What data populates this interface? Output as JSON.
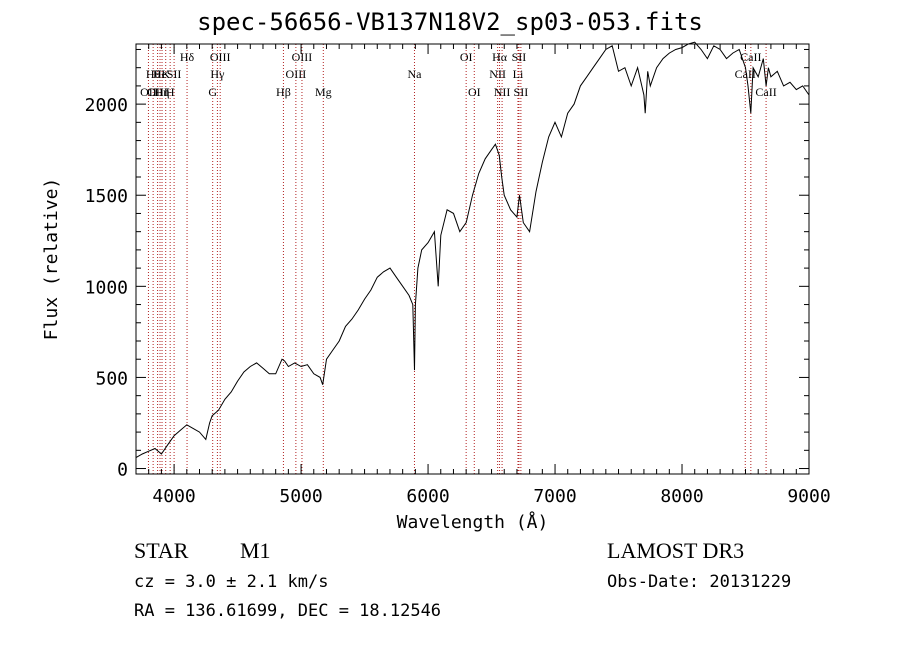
{
  "title": "spec-56656-VB137N18V2_sp03-053.fits",
  "info": {
    "object_class": "STAR",
    "subclass": "M1",
    "survey": "LAMOST DR3",
    "cz": "cz = 3.0 ± 2.1 km/s",
    "obs_date": "Obs-Date: 20131229",
    "coords": "RA = 136.61699, DEC =  18.12546"
  },
  "chart_data": {
    "type": "line",
    "title": "spec-56656-VB137N18V2_sp03-053.fits",
    "xlabel": "Wavelength (Å)",
    "ylabel": "Flux (relative)",
    "xlim": [
      3700,
      9000
    ],
    "ylim": [
      -30,
      2330
    ],
    "x_ticks": [
      4000,
      5000,
      6000,
      7000,
      8000,
      9000
    ],
    "x_tick_labels": [
      "4000",
      "5000",
      "6000",
      "7000",
      "8000",
      "9000"
    ],
    "y_ticks": [
      0,
      500,
      1000,
      1500,
      2000
    ],
    "y_tick_labels": [
      "0",
      "500",
      "1000",
      "1500",
      "2000"
    ],
    "series": [
      {
        "name": "flux",
        "x": [
          3700,
          3750,
          3800,
          3850,
          3900,
          3950,
          4000,
          4050,
          4100,
          4150,
          4200,
          4250,
          4280,
          4300,
          4350,
          4400,
          4450,
          4500,
          4550,
          4600,
          4650,
          4700,
          4750,
          4800,
          4850,
          4870,
          4900,
          4950,
          5000,
          5050,
          5100,
          5150,
          5170,
          5200,
          5250,
          5300,
          5350,
          5400,
          5450,
          5500,
          5550,
          5600,
          5650,
          5700,
          5750,
          5800,
          5850,
          5880,
          5893,
          5900,
          5920,
          5950,
          6000,
          6050,
          6080,
          6100,
          6150,
          6200,
          6250,
          6300,
          6350,
          6400,
          6450,
          6500,
          6530,
          6560,
          6580,
          6600,
          6650,
          6700,
          6720,
          6750,
          6800,
          6850,
          6900,
          6950,
          7000,
          7050,
          7100,
          7150,
          7200,
          7250,
          7300,
          7350,
          7400,
          7450,
          7500,
          7550,
          7600,
          7650,
          7700,
          7710,
          7730,
          7750,
          7800,
          7850,
          7900,
          7950,
          8000,
          8050,
          8100,
          8150,
          8200,
          8250,
          8300,
          8350,
          8400,
          8450,
          8500,
          8520,
          8542,
          8560,
          8600,
          8640,
          8662,
          8680,
          8700,
          8750,
          8800,
          8850,
          8900,
          8950,
          9000
        ],
        "y": [
          60,
          80,
          95,
          110,
          80,
          130,
          180,
          210,
          240,
          220,
          200,
          160,
          250,
          290,
          320,
          380,
          420,
          480,
          530,
          560,
          580,
          550,
          520,
          520,
          600,
          590,
          560,
          580,
          560,
          570,
          520,
          500,
          460,
          600,
          650,
          700,
          780,
          820,
          870,
          930,
          980,
          1050,
          1080,
          1100,
          1050,
          1000,
          950,
          900,
          540,
          900,
          1100,
          1200,
          1240,
          1300,
          1000,
          1280,
          1420,
          1400,
          1300,
          1350,
          1500,
          1620,
          1700,
          1750,
          1780,
          1720,
          1600,
          1500,
          1420,
          1380,
          1500,
          1350,
          1300,
          1520,
          1680,
          1820,
          1900,
          1820,
          1950,
          2000,
          2100,
          2150,
          2200,
          2250,
          2300,
          2320,
          2180,
          2200,
          2100,
          2200,
          2050,
          1950,
          2180,
          2100,
          2200,
          2250,
          2280,
          2300,
          2310,
          2330,
          2340,
          2300,
          2250,
          2320,
          2300,
          2250,
          2280,
          2300,
          2200,
          2100,
          1950,
          2200,
          2150,
          2250,
          2100,
          2200,
          2150,
          2180,
          2100,
          2120,
          2080,
          2100,
          2050
        ]
      }
    ],
    "lines": [
      {
        "x": 3798,
        "label": "OII",
        "row": 2
      },
      {
        "x": 3835,
        "label": "Hθ",
        "row": 1
      },
      {
        "x": 3870,
        "label": "OIII",
        "row": 2
      },
      {
        "x": 3889,
        "label": "He",
        "row": 1
      },
      {
        "x": 3905,
        "label": "Hη",
        "row": 2
      },
      {
        "x": 3934,
        "label": "K",
        "row": 1
      },
      {
        "x": 3969,
        "label": "H",
        "row": 2
      },
      {
        "x": 4000,
        "label": "SII",
        "row": 1
      },
      {
        "x": 4102,
        "label": "Hδ",
        "row": 0
      },
      {
        "x": 4304,
        "label": "G",
        "row": 2
      },
      {
        "x": 4341,
        "label": "Hγ",
        "row": 1
      },
      {
        "x": 4363,
        "label": "OIII",
        "row": 0
      },
      {
        "x": 4861,
        "label": "Hβ",
        "row": 2
      },
      {
        "x": 4959,
        "label": "OIII",
        "row": 1
      },
      {
        "x": 5007,
        "label": "OIII",
        "row": 0
      },
      {
        "x": 5175,
        "label": "Mg",
        "row": 2
      },
      {
        "x": 5893,
        "label": "Na",
        "row": 1
      },
      {
        "x": 6300,
        "label": "OI",
        "row": 0
      },
      {
        "x": 6364,
        "label": "OI",
        "row": 2
      },
      {
        "x": 6548,
        "label": "NII",
        "row": 1
      },
      {
        "x": 6563,
        "label": "Hα",
        "row": 0
      },
      {
        "x": 6583,
        "label": "NII",
        "row": 2
      },
      {
        "x": 6708,
        "label": "Li",
        "row": 1
      },
      {
        "x": 6716,
        "label": "SII",
        "row": 0
      },
      {
        "x": 6731,
        "label": "SII",
        "row": 2
      },
      {
        "x": 8498,
        "label": "CaII",
        "row": 1
      },
      {
        "x": 8542,
        "label": "CaII",
        "row": 0
      },
      {
        "x": 8662,
        "label": "CaII",
        "row": 2
      }
    ]
  }
}
